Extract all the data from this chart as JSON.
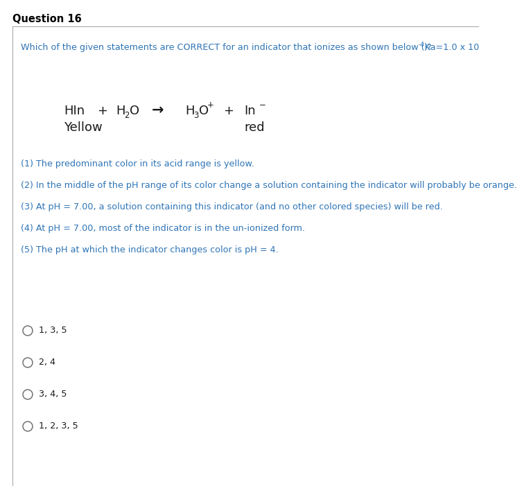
{
  "title": "Question 16",
  "text_color": "#2E74B5",
  "eq_color": "#1A1A1A",
  "bg_color": "#FFFFFF",
  "border_color": "#AAAAAA",
  "question_main": "Which of the given statements are CORRECT for an indicator that ionizes as shown below (Ka=1.0 x 10",
  "question_sup": "-4",
  "question_end": ")?",
  "statements": [
    "(1) The predominant color in its acid range is yellow.",
    "(2) In the middle of the pH range of its color change a solution containing the indicator will probably be orange.",
    "(3) At pH = 7.00, a solution containing this indicator (and no other colored species) will be red.",
    "(4) At pH = 7.00, most of the indicator is in the un-ionized form.",
    "(5) The pH at which the indicator changes color is pH = 4."
  ],
  "options": [
    "1, 3, 5",
    "2, 4",
    "3, 4, 5",
    "1, 2, 3, 5"
  ]
}
